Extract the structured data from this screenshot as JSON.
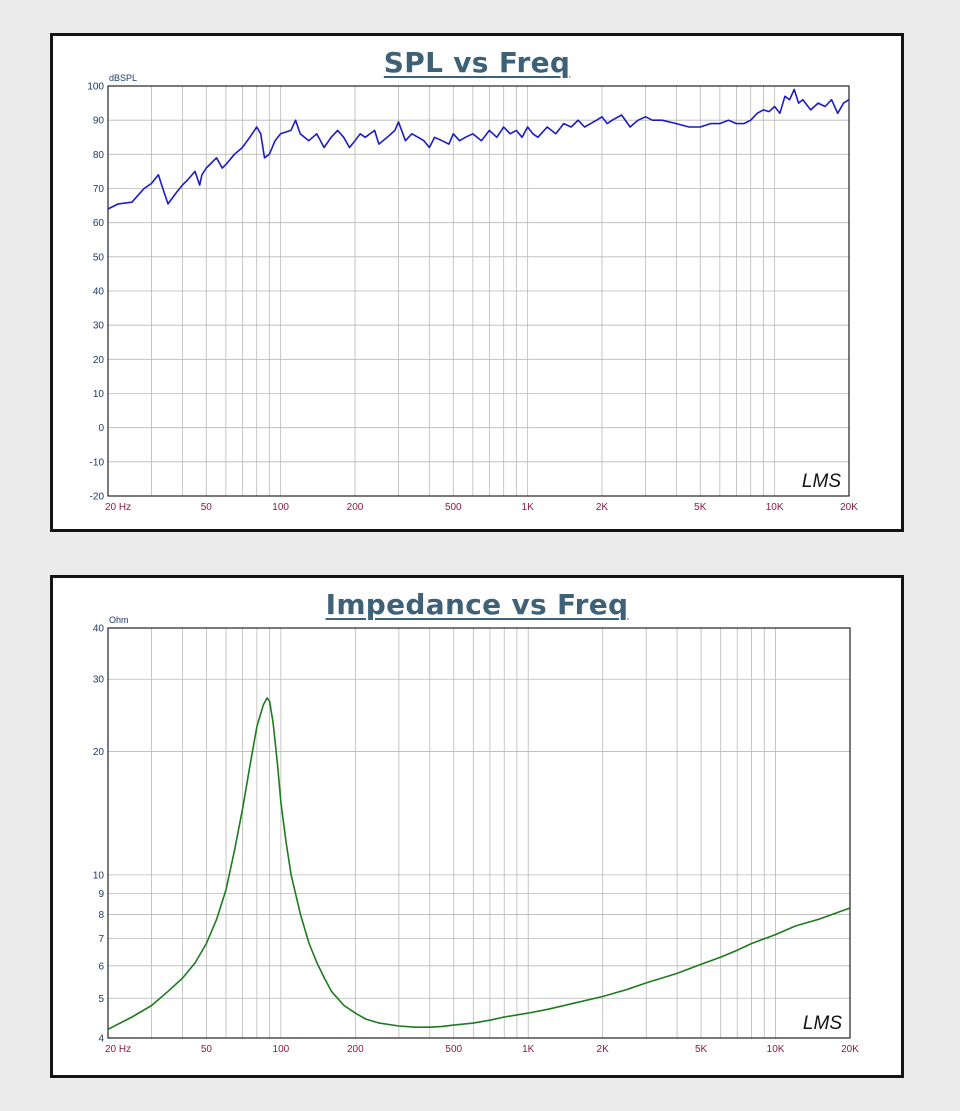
{
  "colors": {
    "background": "#ebebeb",
    "title": "#3f6178",
    "ytick": "#1a3a6a",
    "xtick": "#8a1a40",
    "grid": "#b8b8b8",
    "spl_line": "#1c1cc4",
    "imp_line": "#1e7a1e"
  },
  "chart_data": [
    {
      "type": "line",
      "title": "SPL vs Freq",
      "ylabel": "dBSPL",
      "xscale": "log",
      "xlim": [
        20,
        20000
      ],
      "ylim": [
        -20,
        100
      ],
      "grid": true,
      "watermark": "LMS",
      "xtick_values": [
        20,
        50,
        100,
        200,
        500,
        1000,
        2000,
        5000,
        10000,
        20000
      ],
      "xtick_labels": [
        "20 Hz",
        "50",
        "100",
        "200",
        "500",
        "1K",
        "2K",
        "5K",
        "10K",
        "20K"
      ],
      "ytick_values": [
        -20,
        -10,
        0,
        10,
        20,
        30,
        40,
        50,
        60,
        70,
        80,
        90,
        100
      ],
      "ytick_labels": [
        "-20",
        "-10",
        "0",
        "10",
        "20",
        "30",
        "40",
        "50",
        "60",
        "70",
        "80",
        "90",
        "100"
      ],
      "series": [
        {
          "x": [
            20,
            22,
            25,
            28,
            30,
            32,
            33,
            35,
            38,
            40,
            42,
            45,
            47,
            48,
            50,
            55,
            58,
            60,
            65,
            70,
            75,
            80,
            83,
            86,
            90,
            95,
            100,
            110,
            115,
            120,
            130,
            140,
            150,
            160,
            170,
            180,
            190,
            200,
            210,
            220,
            240,
            250,
            270,
            290,
            300,
            320,
            340,
            360,
            380,
            400,
            420,
            450,
            480,
            500,
            530,
            560,
            600,
            650,
            700,
            750,
            800,
            850,
            900,
            950,
            1000,
            1050,
            1100,
            1200,
            1300,
            1400,
            1500,
            1600,
            1700,
            1800,
            1900,
            2000,
            2100,
            2200,
            2400,
            2600,
            2800,
            3000,
            3200,
            3500,
            4000,
            4500,
            5000,
            5500,
            6000,
            6500,
            7000,
            7500,
            8000,
            8500,
            9000,
            9500,
            10000,
            10500,
            11000,
            11500,
            12000,
            12500,
            13000,
            14000,
            15000,
            16000,
            17000,
            18000,
            19000,
            20000
          ],
          "y": [
            64,
            65.5,
            66,
            70,
            71.5,
            74,
            71,
            65.5,
            69,
            71,
            72.5,
            75,
            71,
            74,
            76,
            79,
            76,
            77,
            80,
            82,
            85,
            88,
            86,
            79,
            80,
            84,
            86,
            87,
            90,
            86,
            84,
            86,
            82,
            85,
            87,
            85,
            82,
            84,
            86,
            85,
            87,
            83,
            85,
            87,
            89.5,
            84,
            86,
            85,
            84,
            82,
            85,
            84,
            83,
            86,
            84,
            85,
            86,
            84,
            87,
            85,
            88,
            86,
            87,
            85,
            88,
            86,
            85,
            88,
            86,
            89,
            88,
            90,
            88,
            89,
            90,
            91,
            89,
            90,
            91.5,
            88,
            90,
            91,
            90,
            90,
            89,
            88,
            88,
            89,
            89,
            90,
            89,
            89,
            90,
            92,
            93,
            92.5,
            94,
            92,
            97,
            96,
            99,
            95,
            96,
            93,
            95,
            94,
            96,
            92,
            95,
            96
          ]
        }
      ]
    },
    {
      "type": "line",
      "title": "Impedance vs Freq",
      "ylabel": "Ohm",
      "xscale": "log",
      "yscale": "log",
      "xlim": [
        20,
        20000
      ],
      "ylim": [
        4,
        40
      ],
      "grid": true,
      "watermark": "LMS",
      "xtick_values": [
        20,
        50,
        100,
        200,
        500,
        1000,
        2000,
        5000,
        10000,
        20000
      ],
      "xtick_labels": [
        "20 Hz",
        "50",
        "100",
        "200",
        "500",
        "1K",
        "2K",
        "5K",
        "10K",
        "20K"
      ],
      "ytick_values": [
        4,
        5,
        6,
        7,
        8,
        9,
        10,
        20,
        30,
        40
      ],
      "ytick_labels": [
        "4",
        "5",
        "6",
        "7",
        "8",
        "9",
        "10",
        "20",
        "30",
        "40"
      ],
      "series": [
        {
          "x": [
            20,
            25,
            30,
            35,
            40,
            45,
            50,
            55,
            60,
            65,
            70,
            75,
            80,
            85,
            88,
            90,
            93,
            97,
            100,
            105,
            110,
            120,
            130,
            140,
            150,
            160,
            180,
            200,
            220,
            250,
            300,
            350,
            400,
            450,
            500,
            600,
            700,
            800,
            1000,
            1200,
            1500,
            2000,
            2500,
            3000,
            4000,
            5000,
            6000,
            7000,
            8000,
            10000,
            12000,
            15000,
            20000
          ],
          "y": [
            4.2,
            4.5,
            4.8,
            5.2,
            5.6,
            6.1,
            6.8,
            7.8,
            9.2,
            11.5,
            14.5,
            18.5,
            23,
            26,
            27,
            26.5,
            23.5,
            18.5,
            15,
            12,
            10,
            8,
            6.8,
            6.1,
            5.6,
            5.2,
            4.8,
            4.6,
            4.45,
            4.35,
            4.28,
            4.25,
            4.25,
            4.27,
            4.3,
            4.35,
            4.42,
            4.5,
            4.6,
            4.7,
            4.85,
            5.05,
            5.25,
            5.45,
            5.75,
            6.05,
            6.3,
            6.55,
            6.8,
            7.15,
            7.5,
            7.8,
            8.3
          ]
        }
      ]
    }
  ]
}
